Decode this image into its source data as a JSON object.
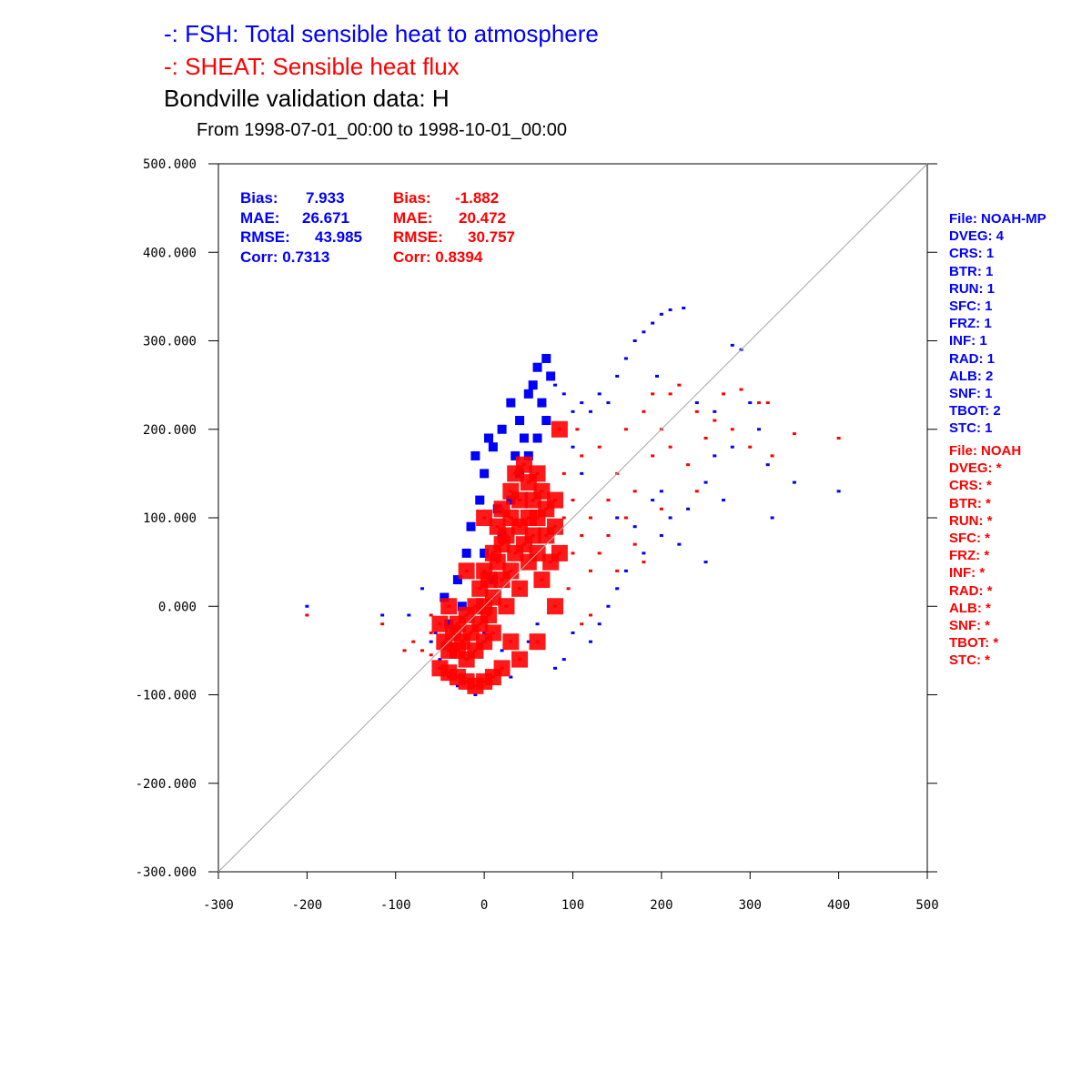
{
  "titles": {
    "line1": "-:  FSH: Total sensible heat to atmosphere",
    "line2": "-:  SHEAT: Sensible heat flux",
    "line3": "Bondville validation data:  H",
    "subtitle": "From 1998-07-01_00:00 to 1998-10-01_00:00"
  },
  "stats": {
    "blue": {
      "bias_label": "Bias:",
      "bias": "7.933",
      "mae_label": "MAE:",
      "mae": "26.671",
      "rmse_label": "RMSE:",
      "rmse": "43.985",
      "corr": "Corr: 0.7313"
    },
    "red": {
      "bias_label": "Bias:",
      "bias": "-1.882",
      "mae_label": "MAE:",
      "mae": "20.472",
      "rmse_label": "RMSE:",
      "rmse": "30.757",
      "corr": "Corr: 0.8394"
    }
  },
  "legend_blue": [
    "File: NOAH-MP",
    "DVEG: 4",
    "CRS: 1",
    "BTR: 1",
    "RUN: 1",
    "SFC: 1",
    "FRZ: 1",
    "INF: 1",
    "RAD: 1",
    "ALB: 2",
    "SNF: 1",
    "TBOT: 2",
    "STC: 1"
  ],
  "legend_red": [
    "File: NOAH",
    "DVEG: *",
    "CRS: *",
    "BTR: *",
    "RUN: *",
    "SFC: *",
    "FRZ: *",
    "INF: *",
    "RAD: *",
    "ALB: *",
    "SNF: *",
    "TBOT: *",
    "STC: *"
  ],
  "chart_data": {
    "type": "scatter",
    "xlim": [
      -300,
      500
    ],
    "ylim": [
      -300,
      500
    ],
    "xticks": [
      "-300",
      "-200",
      "-100",
      "0",
      "100",
      "200",
      "300",
      "400",
      "500"
    ],
    "yticks": [
      "-300.000",
      "-200.000",
      "-100.000",
      "0.000",
      "100.000",
      "200.000",
      "300.000",
      "400.000",
      "500.000"
    ],
    "reference_line": "1:1 diagonal",
    "grid": false,
    "colors": {
      "fsh": "#0000ff",
      "sheat": "#ff0000",
      "diagonal": "#b0b0b0"
    },
    "series": [
      {
        "name": "FSH: Total sensible heat to atmosphere",
        "color": "#0000ff",
        "points": [
          [
            -200,
            0
          ],
          [
            -115,
            -10
          ],
          [
            -85,
            -10
          ],
          [
            -70,
            20
          ],
          [
            -60,
            -40
          ],
          [
            -50,
            -60
          ],
          [
            -40,
            -80
          ],
          [
            -30,
            -90
          ],
          [
            -10,
            -100
          ],
          [
            -20,
            -60
          ],
          [
            -45,
            10
          ],
          [
            -30,
            30
          ],
          [
            -20,
            60
          ],
          [
            -15,
            90
          ],
          [
            -5,
            120
          ],
          [
            0,
            150
          ],
          [
            -10,
            170
          ],
          [
            5,
            190
          ],
          [
            10,
            180
          ],
          [
            20,
            200
          ],
          [
            30,
            230
          ],
          [
            40,
            210
          ],
          [
            50,
            240
          ],
          [
            55,
            250
          ],
          [
            60,
            270
          ],
          [
            70,
            280
          ],
          [
            65,
            230
          ],
          [
            75,
            260
          ],
          [
            80,
            250
          ],
          [
            90,
            240
          ],
          [
            100,
            220
          ],
          [
            110,
            230
          ],
          [
            120,
            220
          ],
          [
            130,
            240
          ],
          [
            140,
            230
          ],
          [
            150,
            260
          ],
          [
            160,
            280
          ],
          [
            170,
            300
          ],
          [
            180,
            310
          ],
          [
            190,
            320
          ],
          [
            200,
            330
          ],
          [
            210,
            335
          ],
          [
            225,
            337
          ],
          [
            195,
            260
          ],
          [
            240,
            230
          ],
          [
            260,
            220
          ],
          [
            280,
            295
          ],
          [
            290,
            290
          ],
          [
            300,
            230
          ],
          [
            310,
            200
          ],
          [
            320,
            160
          ],
          [
            325,
            100
          ],
          [
            350,
            140
          ],
          [
            400,
            130
          ],
          [
            280,
            180
          ],
          [
            260,
            170
          ],
          [
            250,
            140
          ],
          [
            270,
            120
          ],
          [
            230,
            110
          ],
          [
            210,
            100
          ],
          [
            200,
            80
          ],
          [
            180,
            60
          ],
          [
            160,
            40
          ],
          [
            150,
            20
          ],
          [
            140,
            0
          ],
          [
            130,
            -20
          ],
          [
            120,
            -40
          ],
          [
            100,
            -30
          ],
          [
            90,
            -60
          ],
          [
            80,
            -70
          ],
          [
            60,
            -20
          ],
          [
            50,
            -40
          ],
          [
            40,
            -60
          ],
          [
            30,
            -80
          ],
          [
            20,
            -50
          ],
          [
            0,
            -30
          ],
          [
            10,
            30
          ],
          [
            20,
            80
          ],
          [
            30,
            120
          ],
          [
            40,
            150
          ],
          [
            50,
            170
          ],
          [
            60,
            190
          ],
          [
            -40,
            -20
          ],
          [
            -25,
            0
          ],
          [
            0,
            60
          ],
          [
            15,
            110
          ],
          [
            35,
            170
          ],
          [
            45,
            190
          ],
          [
            70,
            210
          ],
          [
            85,
            200
          ],
          [
            100,
            180
          ],
          [
            110,
            150
          ],
          [
            150,
            100
          ],
          [
            170,
            90
          ],
          [
            190,
            120
          ],
          [
            220,
            70
          ],
          [
            250,
            50
          ],
          [
            200,
            130
          ],
          [
            -55,
            -30
          ]
        ]
      },
      {
        "name": "SHEAT: Sensible heat flux",
        "color": "#ff0000",
        "points": [
          [
            -200,
            -10
          ],
          [
            -115,
            -20
          ],
          [
            -90,
            -50
          ],
          [
            -80,
            -40
          ],
          [
            -60,
            -55
          ],
          [
            -50,
            -70
          ],
          [
            -40,
            -75
          ],
          [
            -30,
            -80
          ],
          [
            -20,
            -85
          ],
          [
            -10,
            -90
          ],
          [
            0,
            -85
          ],
          [
            10,
            -80
          ],
          [
            -60,
            -30
          ],
          [
            -50,
            -20
          ],
          [
            -45,
            -40
          ],
          [
            -40,
            -50
          ],
          [
            -35,
            -30
          ],
          [
            -30,
            -20
          ],
          [
            -30,
            -50
          ],
          [
            -25,
            -40
          ],
          [
            -20,
            -10
          ],
          [
            -20,
            -60
          ],
          [
            -15,
            -30
          ],
          [
            -10,
            0
          ],
          [
            -10,
            -50
          ],
          [
            -5,
            20
          ],
          [
            -5,
            -20
          ],
          [
            0,
            0
          ],
          [
            0,
            -40
          ],
          [
            0,
            40
          ],
          [
            5,
            30
          ],
          [
            5,
            -10
          ],
          [
            10,
            10
          ],
          [
            10,
            60
          ],
          [
            10,
            -30
          ],
          [
            15,
            50
          ],
          [
            15,
            90
          ],
          [
            20,
            30
          ],
          [
            20,
            70
          ],
          [
            20,
            110
          ],
          [
            25,
            0
          ],
          [
            25,
            80
          ],
          [
            30,
            40
          ],
          [
            30,
            100
          ],
          [
            30,
            130
          ],
          [
            35,
            60
          ],
          [
            35,
            150
          ],
          [
            40,
            20
          ],
          [
            40,
            90
          ],
          [
            40,
            120
          ],
          [
            45,
            70
          ],
          [
            45,
            160
          ],
          [
            50,
            50
          ],
          [
            50,
            100
          ],
          [
            50,
            140
          ],
          [
            55,
            80
          ],
          [
            55,
            120
          ],
          [
            60,
            60
          ],
          [
            60,
            150
          ],
          [
            60,
            100
          ],
          [
            65,
            30
          ],
          [
            65,
            130
          ],
          [
            70,
            80
          ],
          [
            70,
            110
          ],
          [
            75,
            50
          ],
          [
            80,
            120
          ],
          [
            80,
            90
          ],
          [
            85,
            60
          ],
          [
            85,
            200
          ],
          [
            90,
            100
          ],
          [
            90,
            150
          ],
          [
            95,
            20
          ],
          [
            100,
            60
          ],
          [
            100,
            120
          ],
          [
            105,
            200
          ],
          [
            110,
            80
          ],
          [
            110,
            -20
          ],
          [
            120,
            100
          ],
          [
            120,
            40
          ],
          [
            130,
            60
          ],
          [
            130,
            180
          ],
          [
            140,
            120
          ],
          [
            140,
            80
          ],
          [
            150,
            40
          ],
          [
            150,
            150
          ],
          [
            160,
            100
          ],
          [
            160,
            200
          ],
          [
            170,
            70
          ],
          [
            170,
            130
          ],
          [
            180,
            220
          ],
          [
            180,
            50
          ],
          [
            190,
            170
          ],
          [
            190,
            240
          ],
          [
            200,
            200
          ],
          [
            210,
            180
          ],
          [
            220,
            250
          ],
          [
            230,
            160
          ],
          [
            240,
            220
          ],
          [
            250,
            190
          ],
          [
            260,
            210
          ],
          [
            270,
            240
          ],
          [
            280,
            200
          ],
          [
            290,
            245
          ],
          [
            300,
            180
          ],
          [
            310,
            230
          ],
          [
            320,
            230
          ],
          [
            325,
            170
          ],
          [
            350,
            195
          ],
          [
            400,
            190
          ],
          [
            60,
            -40
          ],
          [
            40,
            -60
          ],
          [
            20,
            -70
          ],
          [
            80,
            0
          ],
          [
            120,
            -10
          ],
          [
            -20,
            40
          ],
          [
            -40,
            0
          ],
          [
            -60,
            -10
          ],
          [
            -70,
            -50
          ],
          [
            0,
            100
          ],
          [
            30,
            -40
          ],
          [
            110,
            170
          ],
          [
            200,
            110
          ],
          [
            210,
            240
          ],
          [
            240,
            130
          ]
        ]
      }
    ]
  }
}
